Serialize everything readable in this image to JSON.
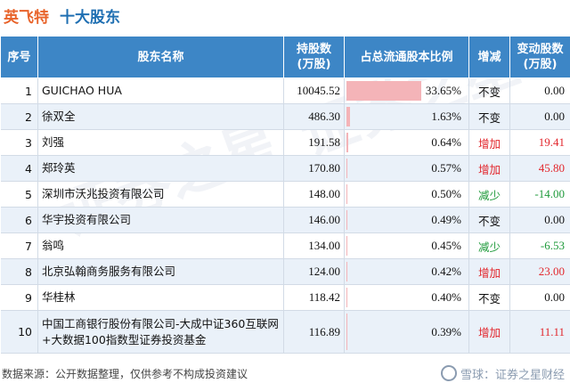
{
  "title": {
    "company": "英飞特",
    "subtitle": "十大股东"
  },
  "columns": [
    "序号",
    "股东名称",
    "持股数\n(万股)",
    "占总流通股本比例",
    "增减",
    "变动股数\n(万股)"
  ],
  "rows": [
    {
      "idx": "1",
      "name": "GUICHAO HUA",
      "shares": "10045.52",
      "ratio": "33.65%",
      "ratio_value": 33.65,
      "change": "不变",
      "change_type": "same",
      "delta": "0.00",
      "delta_type": "same"
    },
    {
      "idx": "2",
      "name": "徐双全",
      "shares": "486.30",
      "ratio": "1.63%",
      "ratio_value": 1.63,
      "change": "不变",
      "change_type": "same",
      "delta": "0.00",
      "delta_type": "same"
    },
    {
      "idx": "3",
      "name": "刘强",
      "shares": "191.58",
      "ratio": "0.64%",
      "ratio_value": 0.64,
      "change": "增加",
      "change_type": "up",
      "delta": "19.41",
      "delta_type": "up"
    },
    {
      "idx": "4",
      "name": "郑玲英",
      "shares": "170.80",
      "ratio": "0.57%",
      "ratio_value": 0.57,
      "change": "增加",
      "change_type": "up",
      "delta": "45.80",
      "delta_type": "up"
    },
    {
      "idx": "5",
      "name": "深圳市沃兆投资有限公司",
      "shares": "148.00",
      "ratio": "0.50%",
      "ratio_value": 0.5,
      "change": "减少",
      "change_type": "down",
      "delta": "-14.00",
      "delta_type": "down"
    },
    {
      "idx": "6",
      "name": "华宇投资有限公司",
      "shares": "146.00",
      "ratio": "0.49%",
      "ratio_value": 0.49,
      "change": "不变",
      "change_type": "same",
      "delta": "0.00",
      "delta_type": "same"
    },
    {
      "idx": "7",
      "name": "翁鸣",
      "shares": "134.00",
      "ratio": "0.45%",
      "ratio_value": 0.45,
      "change": "减少",
      "change_type": "down",
      "delta": "-6.53",
      "delta_type": "down"
    },
    {
      "idx": "8",
      "name": "北京弘翰商务服务有限公司",
      "shares": "124.00",
      "ratio": "0.42%",
      "ratio_value": 0.42,
      "change": "增加",
      "change_type": "up",
      "delta": "23.00",
      "delta_type": "up"
    },
    {
      "idx": "9",
      "name": "华桂林",
      "shares": "118.42",
      "ratio": "0.40%",
      "ratio_value": 0.4,
      "change": "不变",
      "change_type": "same",
      "delta": "0.00",
      "delta_type": "same"
    },
    {
      "idx": "10",
      "name": "中国工商银行股份有限公司-大成中证360互联网+大数据100指数型证券投资基金",
      "shares": "116.89",
      "ratio": "0.39%",
      "ratio_value": 0.39,
      "change": "增加",
      "change_type": "up",
      "delta": "11.11",
      "delta_type": "up"
    }
  ],
  "footer": {
    "source": "数据来源：公开数据整理，仅供参考不构成投资建议",
    "brand": "雪球：证券之星财经"
  },
  "watermark": "证券之星",
  "colors": {
    "header_bg": "#3d86c6",
    "title_company": "#e8632a",
    "title_sub": "#1f6fb2",
    "up": "#e2262c",
    "down": "#1e9a3a",
    "bar": "#f4b4b8",
    "row_alt": "#eaf1f9"
  }
}
